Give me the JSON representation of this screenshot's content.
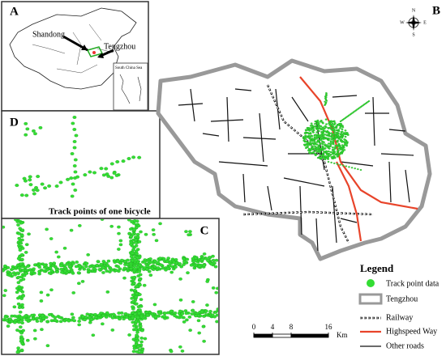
{
  "panels": {
    "a": {
      "label": "A",
      "shandong": "Shandong",
      "tengzhou": "Tengzhou",
      "inset": "South China Sea"
    },
    "b": {
      "label": "B"
    },
    "c": {
      "label": "C"
    },
    "d": {
      "label": "D",
      "caption": "Track points of one bicycle"
    }
  },
  "compass": {
    "n": "N",
    "s": "S",
    "e": "E",
    "w": "W"
  },
  "legend": {
    "title": "Legend",
    "items": [
      "Track point data",
      "Tengzhou",
      "Railway",
      "Highspeed Way",
      "Other roads"
    ]
  },
  "scale": {
    "ticks": [
      0,
      4,
      8,
      16
    ],
    "unit": "Km"
  }
}
